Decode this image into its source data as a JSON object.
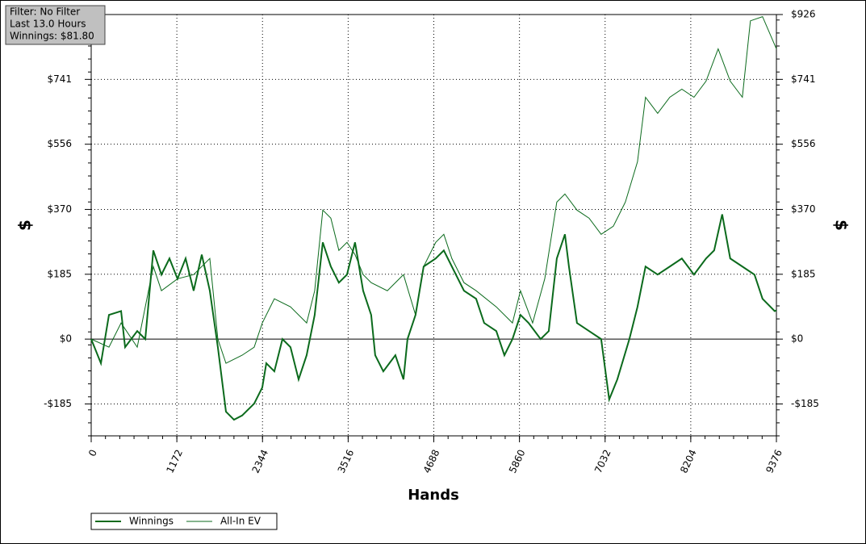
{
  "chart_data": {
    "type": "line",
    "annotations": [
      "Filter: No Filter",
      "Last 13.0 Hours",
      "Winnings: $81.80"
    ],
    "x_label": "Hands",
    "y_label": "$",
    "y2_label": "$",
    "xlim": [
      0,
      9376
    ],
    "xticks": [
      0,
      1172,
      2344,
      3516,
      4688,
      5860,
      7032,
      8204,
      9376
    ],
    "ylim": [
      -276,
      926
    ],
    "yticks": [
      {
        "value": -185,
        "label": "-$185"
      },
      {
        "value": 0,
        "label": "$0"
      },
      {
        "value": 185,
        "label": "$185"
      },
      {
        "value": 370,
        "label": "$370"
      },
      {
        "value": 556,
        "label": "$556"
      },
      {
        "value": 741,
        "label": "$741"
      },
      {
        "value": 926,
        "label": "$926"
      }
    ],
    "y2ticks": [
      {
        "value": -185,
        "label": "-$185"
      },
      {
        "value": 0,
        "label": "$0"
      },
      {
        "value": 185,
        "label": "$185"
      },
      {
        "value": 370,
        "label": "$370"
      },
      {
        "value": 556,
        "label": "$556"
      },
      {
        "value": 741,
        "label": "$741"
      },
      {
        "value": 926,
        "label": "$926"
      }
    ],
    "grid": true,
    "legend": "bottom-left",
    "series": [
      {
        "name": "Winnings",
        "color": "#0b6a1c",
        "width": 2,
        "x": [
          0,
          133,
          243,
          409,
          464,
          630,
          740,
          850,
          961,
          1071,
          1181,
          1292,
          1402,
          1513,
          1623,
          1733,
          1844,
          1954,
          2065,
          2230,
          2341,
          2396,
          2506,
          2617,
          2727,
          2838,
          2948,
          3058,
          3169,
          3279,
          3389,
          3500,
          3610,
          3721,
          3831,
          3886,
          3997,
          4162,
          4273,
          4328,
          4438,
          4549,
          4714,
          4825,
          4935,
          5101,
          5267,
          5377,
          5543,
          5654,
          5764,
          5874,
          5985,
          6150,
          6261,
          6371,
          6482,
          6537,
          6647,
          6813,
          6978,
          7088,
          7199,
          7364,
          7475,
          7585,
          7751,
          7917,
          8082,
          8248,
          8413,
          8524,
          8634,
          8744,
          8910,
          9076,
          9186,
          9352,
          9376
        ],
        "values": [
          0,
          -69,
          69,
          80,
          -23,
          23,
          0,
          253,
          184,
          230,
          172,
          230,
          138,
          241,
          138,
          -23,
          -207,
          -230,
          -218,
          -184,
          -138,
          -69,
          -92,
          0,
          -23,
          -115,
          -46,
          69,
          276,
          207,
          161,
          184,
          276,
          138,
          69,
          -46,
          -92,
          -46,
          -115,
          0,
          69,
          207,
          230,
          253,
          207,
          138,
          115,
          46,
          23,
          -46,
          0,
          69,
          46,
          0,
          23,
          230,
          299,
          207,
          46,
          23,
          0,
          -172,
          -115,
          0,
          92,
          207,
          184,
          207,
          230,
          184,
          230,
          253,
          356,
          230,
          207,
          184,
          115,
          80,
          82
        ]
      },
      {
        "name": "All-In EV",
        "color": "#0b6a1c",
        "width": 1,
        "x": [
          0,
          243,
          409,
          630,
          850,
          961,
          1181,
          1402,
          1623,
          1733,
          1844,
          2065,
          2230,
          2341,
          2506,
          2727,
          2948,
          3058,
          3169,
          3279,
          3389,
          3500,
          3610,
          3721,
          3831,
          4052,
          4273,
          4438,
          4549,
          4714,
          4825,
          4935,
          5101,
          5267,
          5543,
          5764,
          5874,
          6040,
          6206,
          6371,
          6482,
          6647,
          6813,
          6978,
          7144,
          7309,
          7475,
          7585,
          7751,
          7917,
          8082,
          8248,
          8413,
          8579,
          8744,
          8910,
          9020,
          9186,
          9376
        ],
        "values": [
          0,
          -23,
          46,
          -23,
          207,
          138,
          172,
          184,
          230,
          0,
          -69,
          -46,
          -23,
          46,
          115,
          92,
          46,
          138,
          368,
          345,
          253,
          276,
          241,
          184,
          161,
          138,
          184,
          69,
          207,
          276,
          299,
          230,
          161,
          138,
          92,
          46,
          138,
          46,
          172,
          391,
          414,
          368,
          345,
          299,
          322,
          391,
          506,
          690,
          644,
          690,
          713,
          690,
          736,
          828,
          736,
          690,
          908,
          920,
          828
        ]
      }
    ]
  }
}
